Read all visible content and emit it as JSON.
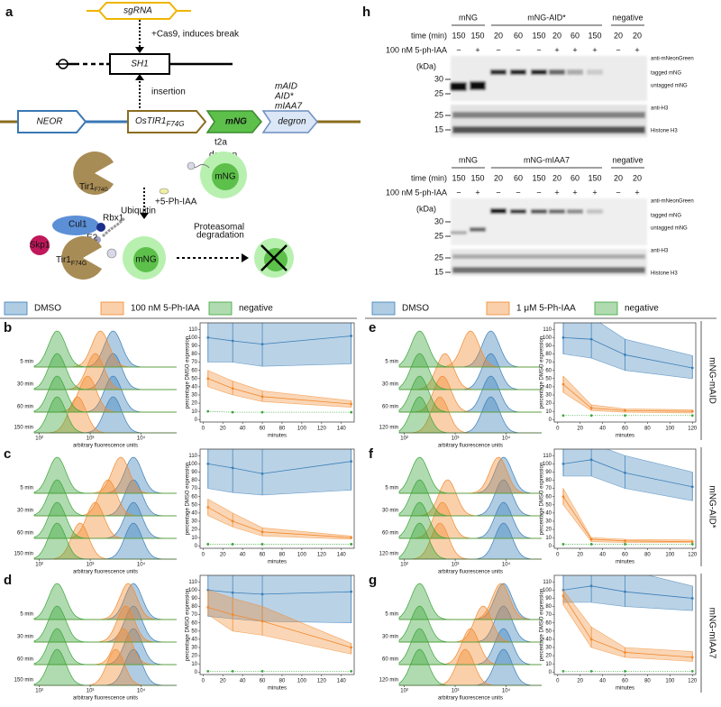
{
  "diagram": {
    "panel": "a",
    "sgrna": "sgRNA",
    "cas9": "+Cas9, induces break",
    "sh1": "SH1",
    "insertion": "insertion",
    "neor": "NEOR",
    "ostir": "OsTIR1",
    "ostir_sub": "F74G",
    "mng": "mNG",
    "degron": "degron",
    "variants": [
      "mAID",
      "AID*",
      "mIAA7"
    ],
    "t2a": "t2a",
    "degron2": "degron",
    "mng2": "mNG",
    "tir": "Tir1",
    "tir_sub": "F74G",
    "ligand": "+5-Ph-IAA",
    "cul1": "Cul1",
    "rbx1": "Rbx1",
    "skp1": "Skp1",
    "e2": "E2",
    "ubiquitin": "Ubiquitin",
    "proteasome": [
      "Proteasomal",
      "degradation"
    ],
    "tir3": "Tir1",
    "tir3_sub": "F74G",
    "mng3": "mNG"
  },
  "blots": [
    {
      "panel": "h",
      "groups": [
        "mNG",
        "mNG-AID*",
        "negative"
      ],
      "time_label": "time (min)",
      "times": [
        150,
        150,
        20,
        60,
        150,
        20,
        60,
        150,
        20,
        20
      ],
      "treatment_label": "100 nM 5-ph-IAA",
      "signs": [
        "−",
        "+",
        "−",
        "−",
        "−",
        "+",
        "+",
        "+",
        "−",
        "+"
      ],
      "kda": "(kDa)",
      "top_ticks": [
        30,
        25
      ],
      "antibody": "anti-mNeonGreen",
      "bands": [
        "tagged mNG",
        "untagged mNG"
      ],
      "h3_ticks": [
        25,
        15
      ],
      "h3_antibody": "anti-H3",
      "h3_band": "Histone H3"
    },
    {
      "groups": [
        "mNG",
        "mNG-mIAA7",
        "negative"
      ],
      "time_label": "time (min)",
      "times": [
        150,
        150,
        20,
        60,
        150,
        20,
        60,
        150,
        20,
        20
      ],
      "treatment_label": "100 nM 5-ph-IAA",
      "signs": [
        "−",
        "+",
        "−",
        "−",
        "−",
        "+",
        "+",
        "+",
        "−",
        "+"
      ],
      "kda": "(kDa)",
      "top_ticks": [
        30,
        25
      ],
      "antibody": "anti-mNeonGreen",
      "bands": [
        "tagged mNG",
        "untagged mNG"
      ],
      "h3_ticks": [
        25,
        15
      ],
      "h3_antibody": "anti-H3",
      "h3_band": "Histone H3"
    }
  ],
  "legends": [
    {
      "items": [
        {
          "label": "DMSO",
          "color": "#3a7fb8"
        },
        {
          "label": "100 nM 5-Ph-IAA",
          "color": "#f28a2e"
        },
        {
          "label": "negative",
          "color": "#3aa53a"
        }
      ]
    },
    {
      "items": [
        {
          "label": "DMSO",
          "color": "#3a7fb8"
        },
        {
          "label": "1 μM 5-Ph-IAA",
          "color": "#f28a2e"
        },
        {
          "label": "negative",
          "color": "#3aa53a"
        }
      ]
    }
  ],
  "row_labels": [
    "mNG-mAID",
    "mNG-AID*",
    "mNG-mIAA7"
  ],
  "chart_data": [
    {
      "type": "ridgeline",
      "panel": "b",
      "rows": [
        "5 min",
        "30 min",
        "60 min",
        "150 min"
      ],
      "xlim": [
        1.9,
        4.7
      ],
      "xticks": [
        {
          "value": 2,
          "label": "10²"
        },
        {
          "value": 3,
          "label": "10³"
        },
        {
          "value": 4,
          "label": "10⁴"
        }
      ],
      "xlabel": "arbitrary fluorescence units",
      "series": [
        {
          "color": "#3a7fb8",
          "values": [
            3.45,
            3.45,
            3.45,
            3.45
          ]
        },
        {
          "color": "#f28a2e",
          "values": [
            3.2,
            3.1,
            2.95,
            2.75
          ]
        },
        {
          "color": "#3aa53a",
          "values": [
            2.35,
            2.35,
            2.35,
            2.35
          ]
        }
      ]
    },
    {
      "type": "line",
      "x": [
        5,
        30,
        60,
        150
      ],
      "xlim": [
        -3,
        153
      ],
      "xticks": [
        0,
        20,
        40,
        60,
        80,
        100,
        120,
        140
      ],
      "ylim": [
        -3,
        118
      ],
      "yticks": [
        0,
        10,
        20,
        30,
        40,
        50,
        60,
        70,
        80,
        90,
        100,
        110
      ],
      "xlabel": "minutes",
      "ylabel": "percentage DMSO expression",
      "series": [
        {
          "color": "#3a7fb8",
          "values": [
            100,
            96,
            92,
            102
          ],
          "lower": [
            70,
            70,
            65,
            68
          ],
          "upper": [
            125,
            125,
            125,
            125
          ]
        },
        {
          "color": "#f28a2e",
          "values": [
            50,
            38,
            28,
            19
          ],
          "lower": [
            40,
            30,
            22,
            15
          ],
          "upper": [
            60,
            47,
            35,
            23
          ]
        },
        {
          "color": "#3aa53a",
          "values": [
            10,
            9,
            9,
            9
          ],
          "linestyle": "dotted"
        }
      ]
    },
    {
      "type": "ridgeline",
      "panel": "c",
      "rows": [
        "5 min",
        "30 min",
        "60 min",
        "150 min"
      ],
      "xlim": [
        1.9,
        4.7
      ],
      "xticks": [
        {
          "value": 2,
          "label": "10²"
        },
        {
          "value": 3,
          "label": "10³"
        },
        {
          "value": 4,
          "label": "10⁴"
        }
      ],
      "xlabel": "arbitrary fluorescence units",
      "series": [
        {
          "color": "#3a7fb8",
          "values": [
            3.85,
            3.85,
            3.85,
            3.85
          ]
        },
        {
          "color": "#f28a2e",
          "values": [
            3.6,
            3.35,
            3.1,
            2.8
          ]
        },
        {
          "color": "#3aa53a",
          "values": [
            2.35,
            2.35,
            2.35,
            2.35
          ]
        }
      ]
    },
    {
      "type": "line",
      "x": [
        5,
        30,
        60,
        150
      ],
      "xlim": [
        -3,
        153
      ],
      "xticks": [
        0,
        20,
        40,
        60,
        80,
        100,
        120,
        140
      ],
      "ylim": [
        -3,
        118
      ],
      "yticks": [
        0,
        10,
        20,
        30,
        40,
        50,
        60,
        70,
        80,
        90,
        100,
        110
      ],
      "xlabel": "minutes",
      "ylabel": "percentage DMSO expression",
      "series": [
        {
          "color": "#3a7fb8",
          "values": [
            100,
            95,
            88,
            103
          ],
          "lower": [
            70,
            65,
            62,
            68
          ],
          "upper": [
            125,
            125,
            125,
            125
          ]
        },
        {
          "color": "#f28a2e",
          "values": [
            47,
            30,
            17,
            10
          ],
          "lower": [
            37,
            23,
            12,
            8
          ],
          "upper": [
            57,
            40,
            22,
            12
          ]
        },
        {
          "color": "#3aa53a",
          "values": [
            2,
            2,
            2,
            2
          ],
          "linestyle": "dotted"
        }
      ]
    },
    {
      "type": "ridgeline",
      "panel": "d",
      "rows": [
        "5 min",
        "30 min",
        "60 min",
        "150 min"
      ],
      "xlim": [
        1.9,
        4.7
      ],
      "xticks": [
        {
          "value": 2,
          "label": "10²"
        },
        {
          "value": 3,
          "label": "10³"
        },
        {
          "value": 4,
          "label": "10⁴"
        }
      ],
      "xlabel": "arbitrary fluorescence units",
      "series": [
        {
          "color": "#3a7fb8",
          "values": [
            3.85,
            3.85,
            3.85,
            3.85
          ]
        },
        {
          "color": "#f28a2e",
          "values": [
            3.75,
            3.7,
            3.65,
            3.5
          ]
        },
        {
          "color": "#3aa53a",
          "values": [
            2.35,
            2.35,
            2.35,
            2.35
          ]
        }
      ]
    },
    {
      "type": "line",
      "x": [
        5,
        30,
        60,
        150
      ],
      "xlim": [
        -3,
        153
      ],
      "xticks": [
        0,
        20,
        40,
        60,
        80,
        100,
        120,
        140
      ],
      "ylim": [
        -3,
        118
      ],
      "yticks": [
        0,
        10,
        20,
        30,
        40,
        50,
        60,
        70,
        80,
        90,
        100,
        110
      ],
      "xlabel": "minutes",
      "ylabel": "percentage DMSO expression",
      "series": [
        {
          "color": "#3a7fb8",
          "values": [
            100,
            97,
            95,
            98
          ],
          "lower": [
            68,
            65,
            62,
            60
          ],
          "upper": [
            125,
            125,
            125,
            125
          ]
        },
        {
          "color": "#f28a2e",
          "values": [
            79,
            70,
            62,
            30
          ],
          "lower": [
            70,
            50,
            45,
            22
          ],
          "upper": [
            100,
            90,
            80,
            35
          ]
        },
        {
          "color": "#3aa53a",
          "values": [
            1,
            1,
            1,
            1
          ],
          "linestyle": "dotted"
        }
      ]
    },
    {
      "type": "ridgeline",
      "panel": "e",
      "rows": [
        "5 min",
        "30 min",
        "60 min",
        "120 min"
      ],
      "xlim": [
        1.9,
        4.7
      ],
      "xticks": [
        {
          "value": 2,
          "label": "10²"
        },
        {
          "value": 3,
          "label": "10³"
        },
        {
          "value": 4,
          "label": "10⁴"
        }
      ],
      "xlabel": "arbitrary fluorescence units",
      "series": [
        {
          "color": "#3a7fb8",
          "values": [
            3.7,
            3.7,
            3.7,
            3.7
          ]
        },
        {
          "color": "#f28a2e",
          "values": [
            3.3,
            2.8,
            2.75,
            2.7
          ]
        },
        {
          "color": "#3aa53a",
          "values": [
            2.3,
            2.3,
            2.3,
            2.3
          ]
        }
      ]
    },
    {
      "type": "line",
      "x": [
        5,
        30,
        60,
        120
      ],
      "xlim": [
        -3,
        123
      ],
      "xticks": [
        0,
        20,
        40,
        60,
        80,
        100,
        120
      ],
      "ylim": [
        -3,
        118
      ],
      "yticks": [
        0,
        10,
        20,
        30,
        40,
        50,
        60,
        70,
        80,
        90,
        100,
        110
      ],
      "xlabel": "minutes",
      "ylabel": "percentage DMSO expression",
      "series": [
        {
          "color": "#3a7fb8",
          "values": [
            100,
            98,
            79,
            63
          ],
          "lower": [
            80,
            75,
            60,
            50
          ],
          "upper": [
            125,
            125,
            98,
            78
          ]
        },
        {
          "color": "#f28a2e",
          "values": [
            43,
            14,
            11,
            10
          ],
          "lower": [
            33,
            11,
            9,
            8
          ],
          "upper": [
            53,
            18,
            13,
            12
          ]
        },
        {
          "color": "#3aa53a",
          "values": [
            5,
            5,
            5,
            5
          ],
          "linestyle": "dotted"
        }
      ]
    },
    {
      "type": "ridgeline",
      "panel": "f",
      "rows": [
        "5 min",
        "30 min",
        "60 min",
        "120 min"
      ],
      "xlim": [
        1.9,
        4.7
      ],
      "xticks": [
        {
          "value": 2,
          "label": "10²"
        },
        {
          "value": 3,
          "label": "10³"
        },
        {
          "value": 4,
          "label": "10⁴"
        }
      ],
      "xlabel": "arbitrary fluorescence units",
      "series": [
        {
          "color": "#3a7fb8",
          "values": [
            3.95,
            3.95,
            3.95,
            3.95
          ]
        },
        {
          "color": "#f28a2e",
          "values": [
            3.85,
            2.85,
            2.75,
            2.7
          ]
        },
        {
          "color": "#3aa53a",
          "values": [
            2.3,
            2.3,
            2.3,
            2.3
          ]
        }
      ]
    },
    {
      "type": "line",
      "x": [
        5,
        30,
        60,
        120
      ],
      "xlim": [
        -3,
        123
      ],
      "xticks": [
        0,
        20,
        40,
        60,
        80,
        100,
        120
      ],
      "ylim": [
        -3,
        118
      ],
      "yticks": [
        0,
        10,
        20,
        30,
        40,
        50,
        60,
        70,
        80,
        90,
        100,
        110
      ],
      "xlabel": "minutes",
      "ylabel": "percentage DMSO expression",
      "series": [
        {
          "color": "#3a7fb8",
          "values": [
            100,
            105,
            89,
            72
          ],
          "lower": [
            85,
            85,
            70,
            55
          ],
          "upper": [
            125,
            125,
            110,
            90
          ]
        },
        {
          "color": "#f28a2e",
          "values": [
            60,
            8,
            6,
            5
          ],
          "lower": [
            50,
            5,
            4,
            4
          ],
          "upper": [
            70,
            10,
            8,
            7
          ]
        },
        {
          "color": "#3aa53a",
          "values": [
            2,
            2,
            2,
            2
          ],
          "linestyle": "dotted"
        }
      ]
    },
    {
      "type": "ridgeline",
      "panel": "g",
      "rows": [
        "5 min",
        "30 min",
        "60 min",
        "120 min"
      ],
      "xlim": [
        1.9,
        4.7
      ],
      "xticks": [
        {
          "value": 2,
          "label": "10²"
        },
        {
          "value": 3,
          "label": "10³"
        },
        {
          "value": 4,
          "label": "10⁴"
        }
      ],
      "xlabel": "arbitrary fluorescence units",
      "series": [
        {
          "color": "#3a7fb8",
          "values": [
            3.95,
            3.95,
            3.95,
            3.95
          ]
        },
        {
          "color": "#f28a2e",
          "values": [
            3.9,
            3.55,
            3.3,
            3.2
          ]
        },
        {
          "color": "#3aa53a",
          "values": [
            2.3,
            2.3,
            2.3,
            2.3
          ]
        }
      ]
    },
    {
      "type": "line",
      "x": [
        5,
        30,
        60,
        120
      ],
      "xlim": [
        -3,
        123
      ],
      "xticks": [
        0,
        20,
        40,
        60,
        80,
        100,
        120
      ],
      "ylim": [
        -3,
        118
      ],
      "yticks": [
        0,
        10,
        20,
        30,
        40,
        50,
        60,
        70,
        80,
        90,
        100,
        110
      ],
      "xlabel": "minutes",
      "ylabel": "percentage DMSO expression",
      "series": [
        {
          "color": "#3a7fb8",
          "values": [
            100,
            105,
            98,
            90
          ],
          "lower": [
            85,
            85,
            80,
            75
          ],
          "upper": [
            125,
            125,
            125,
            105
          ]
        },
        {
          "color": "#f28a2e",
          "values": [
            93,
            40,
            24,
            18
          ],
          "lower": [
            82,
            30,
            18,
            13
          ],
          "upper": [
            100,
            55,
            30,
            25
          ]
        },
        {
          "color": "#3aa53a",
          "values": [
            1,
            1,
            1,
            1
          ],
          "linestyle": "dotted"
        }
      ]
    }
  ]
}
